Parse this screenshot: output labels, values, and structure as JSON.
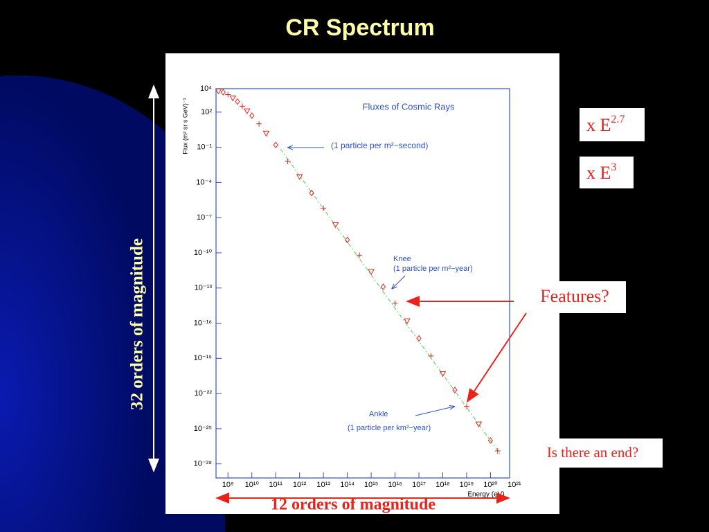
{
  "slide_title": "CR Spectrum",
  "boxes": {
    "e27": {
      "text": "x E",
      "exp": "2.7"
    },
    "e3": {
      "text": "x E",
      "exp": "3"
    },
    "features": "Features?",
    "end": "Is there an end?"
  },
  "vertical_span": "32 orders of magnitude",
  "horizontal_span": "12 orders of magnitude",
  "chart_data": {
    "type": "scatter",
    "title": "Fluxes of Cosmic Rays",
    "xlabel": "Energy (eV)",
    "ylabel": "Flux (m² sr s GeV)⁻¹",
    "xlog": true,
    "ylog": true,
    "color": "#e8231c",
    "annotations": [
      "(1 particle per m²−second)",
      "Knee",
      "(1 particle per m²−year)",
      "Ankle",
      "(1 particle per km²−year)"
    ],
    "x": [
      400000000.0,
      630000000.0,
      1000000000.0,
      1600000000.0,
      2500000000.0,
      4000000000.0,
      6300000000.0,
      10000000000.0,
      20000000000.0,
      40000000000.0,
      100000000000.0,
      320000000000.0,
      1000000000000.0,
      3200000000000.0,
      10000000000000.0,
      32000000000000.0,
      100000000000000.0,
      320000000000000.0,
      1000000000000000.0,
      3200000000000000.0,
      1e+16,
      3.2e+16,
      1e+17,
      3.2e+17,
      1e+18,
      3.2e+18,
      1e+19,
      3.2e+19,
      1e+20,
      2e+20
    ],
    "values": [
      6310,
      5012,
      3162,
      1585,
      794,
      316,
      126,
      50,
      10,
      1.58,
      0.158,
      0.0063,
      0.00032,
      1.26e-05,
      6.3e-07,
      2.5e-08,
      1.26e-09,
      6.3e-11,
      2.5e-12,
      1.26e-13,
      5e-15,
      1.6e-16,
      5e-18,
      1.6e-19,
      5e-21,
      2e-22,
      8e-24,
      2.5e-25,
      1e-26,
      1.26e-27
    ],
    "xlim": [
      316000000.0,
      6.3e+20
    ],
    "ylim": [
      6.3e-30,
      10000.0
    ],
    "xticks": [
      {
        "value": 1000000000.0,
        "label": "10⁹"
      },
      {
        "value": 10000000000.0,
        "label": "10¹⁰"
      },
      {
        "value": 100000000000.0,
        "label": "10¹¹"
      },
      {
        "value": 1000000000000.0,
        "label": "10¹²"
      },
      {
        "value": 10000000000000.0,
        "label": "10¹³"
      },
      {
        "value": 100000000000000.0,
        "label": "10¹⁴"
      },
      {
        "value": 1000000000000000.0,
        "label": "10¹⁵"
      },
      {
        "value": 1e+16,
        "label": "10¹⁶"
      },
      {
        "value": 1e+17,
        "label": "10¹⁷"
      },
      {
        "value": 1e+18,
        "label": "10¹⁸"
      },
      {
        "value": 1e+19,
        "label": "10¹⁹"
      },
      {
        "value": 1e+20,
        "label": "10²⁰"
      },
      {
        "value": 1e+21,
        "label": "10²¹"
      }
    ],
    "yticks": [
      {
        "value": 10000.0,
        "label": "10⁴"
      },
      {
        "value": 100.0,
        "label": "10²"
      },
      {
        "value": 0.1,
        "label": "10⁻¹"
      },
      {
        "value": 0.0001,
        "label": "10⁻⁴"
      },
      {
        "value": 1e-07,
        "label": "10⁻⁷"
      },
      {
        "value": 1e-10,
        "label": "10⁻¹⁰"
      },
      {
        "value": 1e-13,
        "label": "10⁻¹³"
      },
      {
        "value": 1e-16,
        "label": "10⁻¹⁶"
      },
      {
        "value": 1e-19,
        "label": "10⁻¹⁹"
      },
      {
        "value": 1e-22,
        "label": "10⁻²²"
      },
      {
        "value": 1e-25,
        "label": "10⁻²⁵"
      },
      {
        "value": 1e-28,
        "label": "10⁻²⁸"
      }
    ]
  }
}
